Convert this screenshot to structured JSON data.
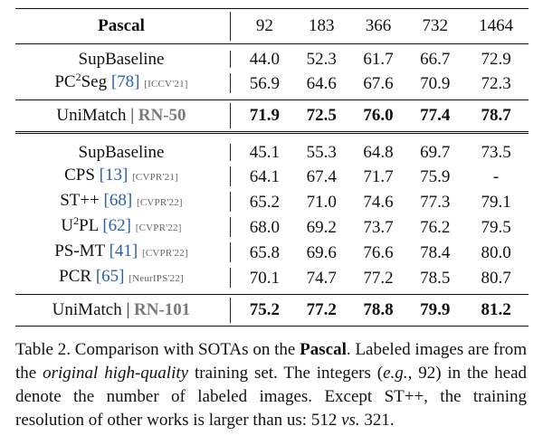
{
  "table": {
    "header": {
      "dataset": "Pascal",
      "splits": [
        "92",
        "183",
        "366",
        "732",
        "1464"
      ]
    },
    "group1": [
      {
        "method": "SupBaseline",
        "values": [
          "44.0",
          "52.3",
          "61.7",
          "66.7",
          "72.9"
        ]
      },
      {
        "method_base": "PC",
        "method_sup": "2",
        "method_tail": "Seg",
        "cite": "[78]",
        "venue": "[ICCV'21]",
        "values": [
          "56.9",
          "64.6",
          "67.6",
          "70.9",
          "72.3"
        ]
      }
    ],
    "unimatch_rn50": {
      "method": "UniMatch",
      "bar": "|",
      "backbone": "RN-50",
      "values": [
        "71.9",
        "72.5",
        "76.0",
        "77.4",
        "78.7"
      ]
    },
    "group2": [
      {
        "method": "SupBaseline",
        "values": [
          "45.1",
          "55.3",
          "64.8",
          "69.7",
          "73.5"
        ]
      },
      {
        "method": "CPS",
        "cite": "[13]",
        "venue": "[CVPR'21]",
        "values": [
          "64.1",
          "67.4",
          "71.7",
          "75.9",
          "-"
        ]
      },
      {
        "method": "ST++",
        "cite": "[68]",
        "venue": "[CVPR'22]",
        "values": [
          "65.2",
          "71.0",
          "74.6",
          "77.3",
          "79.1"
        ]
      },
      {
        "method_base": "U",
        "method_sup": "2",
        "method_tail": "PL",
        "cite": "[62]",
        "venue": "[CVPR'22]",
        "values": [
          "68.0",
          "69.2",
          "73.7",
          "76.2",
          "79.5"
        ]
      },
      {
        "method": "PS-MT",
        "cite": "[41]",
        "venue": "[CVPR'22]",
        "values": [
          "65.8",
          "69.6",
          "76.6",
          "78.4",
          "80.0"
        ]
      },
      {
        "method": "PCR",
        "cite": "[65]",
        "venue": "[NeurIPS'22]",
        "values": [
          "70.1",
          "74.7",
          "77.2",
          "78.5",
          "80.7"
        ]
      }
    ],
    "unimatch_rn101": {
      "method": "UniMatch",
      "bar": "|",
      "backbone": "RN-101",
      "values": [
        "75.2",
        "77.2",
        "78.8",
        "79.9",
        "81.2"
      ]
    }
  },
  "caption": {
    "p1": "Table 2. Comparison with SOTAs on the ",
    "b1": "Pascal",
    "p2": ". Labeled images are from the ",
    "i1": "original high-quality",
    "p3": " training set. The integers (",
    "i2": "e.g.",
    "p4": ", 92) in the head denote the number of labeled images. Except ST++, the training resolution of other works is larger than us: 512 ",
    "i3": "vs.",
    "p5": " 321."
  }
}
